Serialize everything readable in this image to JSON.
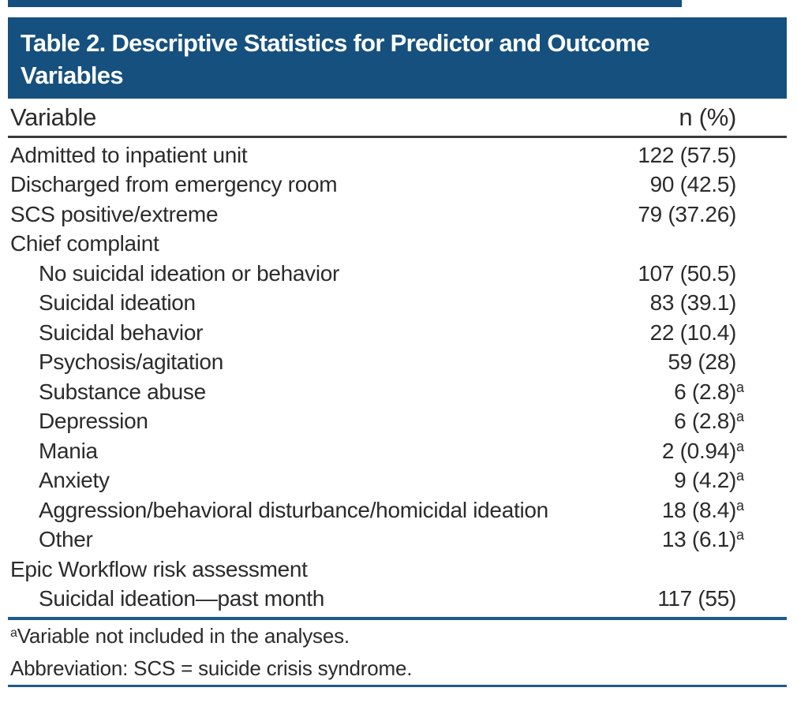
{
  "header": {
    "title_lines": [
      "Table 2. Descriptive Statistics for Predictor and Outcome",
      "Variables"
    ],
    "band_color": "#15507e"
  },
  "columns": {
    "variable": "Variable",
    "n_percent": "n (%)"
  },
  "rows": [
    {
      "label": "Admitted to inpatient unit",
      "value": "122 (57.5)"
    },
    {
      "label": "Discharged from emergency room",
      "value": "90 (42.5)"
    },
    {
      "label": "SCS positive/extreme",
      "value": "79 (37.26)"
    },
    {
      "label": "Chief complaint",
      "value": ""
    },
    {
      "label": "No suicidal ideation or behavior",
      "value": "107 (50.5)"
    },
    {
      "label": "Suicidal ideation",
      "value": "83 (39.1)"
    },
    {
      "label": "Suicidal behavior",
      "value": "22 (10.4)"
    },
    {
      "label": "Psychosis/agitation",
      "value": "59 (28)"
    },
    {
      "label": "Substance abuse",
      "value": "6 (2.8)",
      "sup": "a"
    },
    {
      "label": "Depression",
      "value": "6 (2.8)",
      "sup": "a"
    },
    {
      "label": "Mania",
      "value": "2 (0.94)",
      "sup": "a"
    },
    {
      "label": "Anxiety",
      "value": "9 (4.2)",
      "sup": "a"
    },
    {
      "label": "Aggression/behavioral disturbance/homicidal ideation",
      "value": "18 (8.4)",
      "sup": "a"
    },
    {
      "label": "Other",
      "value": "13 (6.1)",
      "sup": "a"
    },
    {
      "label": "Epic Workflow risk assessment",
      "value": ""
    },
    {
      "label": "Suicidal ideation—past month",
      "value": "117 (55)"
    }
  ],
  "footnotes": [
    {
      "sup": "a",
      "text": "Variable not included in the analyses."
    },
    {
      "sup": "",
      "text": "Abbreviation: SCS = suicide crisis syndrome."
    }
  ],
  "colors": {
    "band_navy": "#15507e",
    "rule_blue": "#1e5a8c",
    "rule_dark": "#3a3a3a",
    "text": "#2b2b2b",
    "title_text": "#ffffff"
  }
}
